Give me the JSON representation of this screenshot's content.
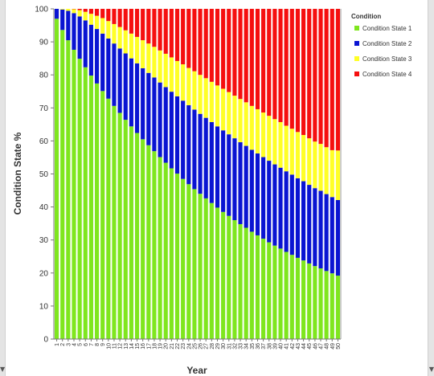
{
  "chart_data": {
    "type": "bar",
    "stacked": true,
    "xlabel": "Year",
    "ylabel": "Condition State %",
    "ylim": [
      0,
      100
    ],
    "yticks": [
      0,
      10,
      20,
      30,
      40,
      50,
      60,
      70,
      80,
      90,
      100
    ],
    "grid": false,
    "legend_title": "Condition",
    "legend_position": "top-right",
    "categories": [
      "1",
      "2",
      "3",
      "4",
      "5",
      "6",
      "7",
      "8",
      "9",
      "10",
      "11",
      "12",
      "13",
      "14",
      "15",
      "16",
      "17",
      "18",
      "19",
      "20",
      "21",
      "22",
      "23",
      "24",
      "25",
      "26",
      "27",
      "28",
      "29",
      "30",
      "31",
      "32",
      "33",
      "34",
      "35",
      "36",
      "37",
      "38",
      "39",
      "40",
      "41",
      "42",
      "43",
      "44",
      "45",
      "46",
      "47",
      "48",
      "49",
      "50"
    ],
    "series": [
      {
        "name": "Condition State 1",
        "color": "#7fe61e",
        "values": [
          97.0,
          93.6,
          90.5,
          87.6,
          84.9,
          82.3,
          79.8,
          77.4,
          75.1,
          72.8,
          70.6,
          68.5,
          66.4,
          64.4,
          62.4,
          60.5,
          58.7,
          56.9,
          55.1,
          53.4,
          51.7,
          50.1,
          48.5,
          46.9,
          45.4,
          44.0,
          42.6,
          41.2,
          39.8,
          38.5,
          37.3,
          36.0,
          34.8,
          33.7,
          32.5,
          31.4,
          30.4,
          29.3,
          28.3,
          27.4,
          26.4,
          25.5,
          24.6,
          23.8,
          22.9,
          22.1,
          21.4,
          20.6,
          19.9,
          19.2
        ]
      },
      {
        "name": "Condition State 2",
        "color": "#0a14d2",
        "values": [
          3.0,
          6.2,
          8.9,
          11.1,
          12.8,
          14.2,
          15.4,
          16.5,
          17.4,
          18.2,
          18.9,
          19.5,
          20.1,
          20.6,
          21.1,
          21.5,
          21.9,
          22.3,
          22.6,
          22.9,
          23.2,
          23.4,
          23.7,
          23.9,
          24.1,
          24.2,
          24.4,
          24.5,
          24.6,
          24.7,
          24.7,
          24.8,
          24.8,
          24.8,
          24.8,
          24.8,
          24.7,
          24.7,
          24.6,
          24.5,
          24.4,
          24.3,
          24.1,
          24.0,
          23.8,
          23.6,
          23.5,
          23.3,
          23.1,
          22.9
        ]
      },
      {
        "name": "Condition State 3",
        "color": "#ffff26",
        "values": [
          0.0,
          0.2,
          0.6,
          1.2,
          1.9,
          2.6,
          3.3,
          4.0,
          4.7,
          5.3,
          5.9,
          6.5,
          7.0,
          7.5,
          8.0,
          8.5,
          8.9,
          9.3,
          9.7,
          10.1,
          10.4,
          10.7,
          11.0,
          11.3,
          11.6,
          11.8,
          12.0,
          12.2,
          12.4,
          12.6,
          12.8,
          12.9,
          13.1,
          13.2,
          13.3,
          13.4,
          13.5,
          13.6,
          13.7,
          13.8,
          13.8,
          13.9,
          14.0,
          14.0,
          14.1,
          14.1,
          14.2,
          14.2,
          14.2,
          15.0
        ]
      },
      {
        "name": "Condition State 4",
        "color": "#f50f0f",
        "values": [
          0.0,
          0.0,
          0.0,
          0.1,
          0.4,
          0.9,
          1.5,
          2.1,
          2.8,
          3.7,
          4.6,
          5.5,
          6.5,
          7.5,
          8.5,
          9.5,
          10.5,
          11.5,
          12.6,
          13.6,
          14.7,
          15.8,
          16.8,
          17.9,
          18.9,
          20.0,
          21.0,
          22.1,
          23.2,
          24.2,
          25.2,
          26.3,
          27.3,
          28.3,
          29.4,
          30.4,
          31.4,
          32.4,
          33.4,
          34.3,
          35.4,
          36.3,
          37.3,
          38.2,
          39.2,
          40.2,
          40.9,
          41.9,
          42.8,
          42.9
        ]
      }
    ]
  }
}
